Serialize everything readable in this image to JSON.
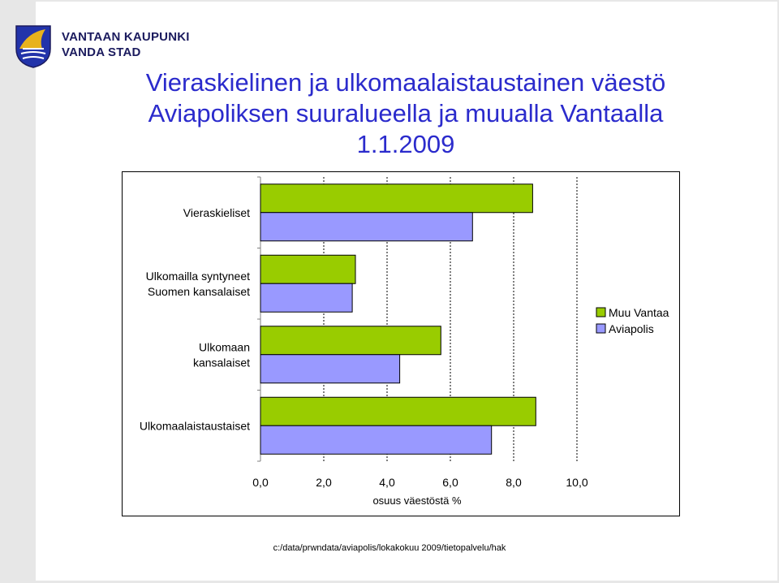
{
  "brand": {
    "line1": "VANTAAN KAUPUNKI",
    "line2": "VANDA STAD"
  },
  "title": {
    "line1": "Vieraskielinen ja ulkomaalaistaustainen väestö",
    "line2": "Aviapoliksen suuralueella ja muualla Vantaalla",
    "line3": "1.1.2009"
  },
  "chart_data": {
    "type": "bar",
    "orientation": "horizontal",
    "categories": [
      "Vieraskieliset",
      "Ulkomailla syntyneet Suomen kansalaiset",
      "Ulkomaan kansalaiset",
      "Ulkomaalaistaustaiset"
    ],
    "category_labels": [
      [
        "Vieraskieliset"
      ],
      [
        "Ulkomailla syntyneet",
        "Suomen kansalaiset"
      ],
      [
        "Ulkomaan",
        "kansalaiset"
      ],
      [
        "Ulkomaalaistaustaiset"
      ]
    ],
    "series": [
      {
        "name": "Muu Vantaa",
        "color": "#99cc00",
        "values": [
          8.6,
          3.0,
          5.7,
          8.7
        ]
      },
      {
        "name": "Aviapolis",
        "color": "#9999ff",
        "values": [
          6.7,
          2.9,
          4.4,
          7.3
        ]
      }
    ],
    "xlabel": "osuus väestöstä %",
    "xlim": [
      0,
      10
    ],
    "xticks": [
      "0,0",
      "2,0",
      "4,0",
      "6,0",
      "8,0",
      "10,0"
    ],
    "grid": "vertical dashed",
    "legend": "right"
  },
  "footer": {
    "path": "c:/data/prwndata/aviapolis/lokakokuu 2009/tietopalvelu/hak"
  }
}
